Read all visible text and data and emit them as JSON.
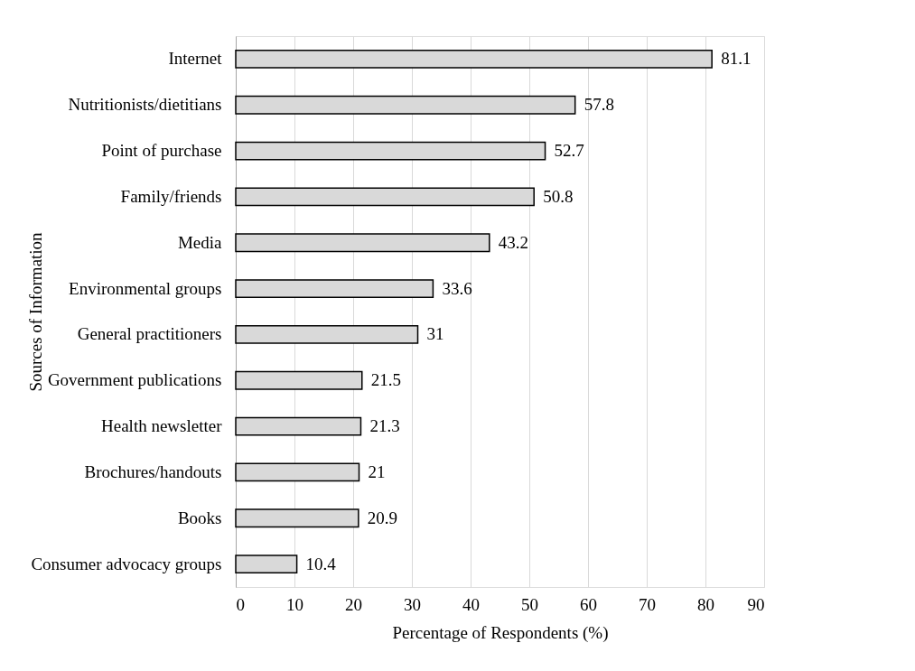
{
  "chart_data": {
    "type": "bar",
    "orientation": "horizontal",
    "xlabel": "Percentage of Respondents (%)",
    "ylabel": "Sources of Information",
    "categories": [
      "Internet",
      "Nutritionists/dietitians",
      "Point of purchase",
      "Family/friends",
      "Media",
      "Environmental groups",
      "General practitioners",
      "Government publications",
      "Health newsletter",
      "Brochures/handouts",
      "Books",
      "Consumer advocacy groups"
    ],
    "values": [
      81.1,
      57.8,
      52.7,
      50.8,
      43.2,
      33.6,
      31,
      21.5,
      21.3,
      21,
      20.9,
      10.4
    ],
    "color": "#d9d9d9",
    "xlim": [
      0,
      90
    ],
    "xticks": [
      0,
      10,
      20,
      30,
      40,
      50,
      60,
      70,
      80,
      90
    ],
    "grid": "x",
    "data_labels": true
  }
}
